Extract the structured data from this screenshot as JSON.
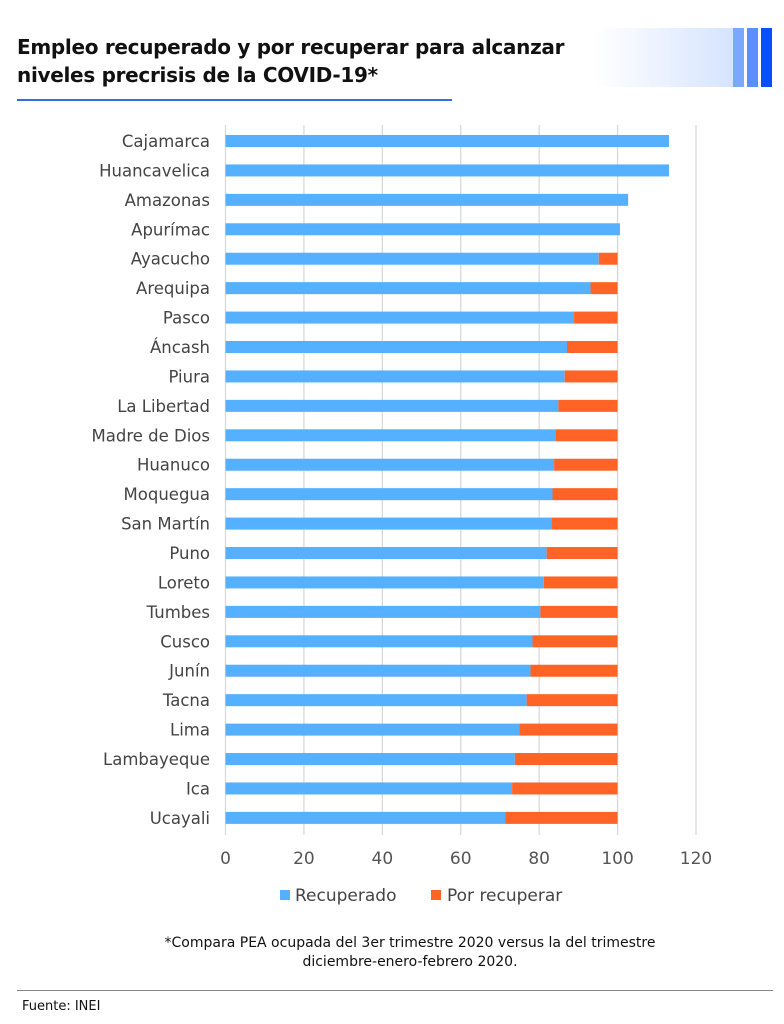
{
  "header": {
    "title_line1": "Empleo recuperado y por recuperar para alcanzar",
    "title_line2": "niveles precrisis de la COVID-19*"
  },
  "colors": {
    "recuperado": "#55b0ff",
    "por_recuperar": "#ff6426",
    "accent": "#2f6fe0",
    "stripes": [
      "#7aa8ff",
      "#5b8fff",
      "#0a4fff"
    ]
  },
  "chart_data": {
    "type": "bar",
    "orientation": "horizontal",
    "stacked": true,
    "title": "Empleo recuperado y por recuperar para alcanzar niveles precrisis de la COVID-19*",
    "categories": [
      "Cajamarca",
      "Huancavelica",
      "Amazonas",
      "Apurímac",
      "Ayacucho",
      "Arequipa",
      "Pasco",
      "Áncash",
      "Piura",
      "La Libertad",
      "Madre de Dios",
      "Huanuco",
      "Moquegua",
      "San Martín",
      "Puno",
      "Loreto",
      "Tumbes",
      "Cusco",
      "Junín",
      "Tacna",
      "Lima",
      "Lambayeque",
      "Ica",
      "Ucayali"
    ],
    "series": [
      {
        "name": "Recuperado",
        "values": [
          113.1,
          113.1,
          102.7,
          100.6,
          95.2,
          93.1,
          88.9,
          87.1,
          86.5,
          84.9,
          84.1,
          83.8,
          83.4,
          83.1,
          81.9,
          81.2,
          80.3,
          78.3,
          77.8,
          76.8,
          74.9,
          73.8,
          73.1,
          71.4
        ]
      },
      {
        "name": "Por recuperar",
        "values": [
          0,
          0,
          0,
          0,
          4.8,
          6.9,
          11.1,
          12.9,
          13.5,
          15.1,
          15.9,
          16.2,
          16.6,
          16.9,
          18.1,
          18.8,
          19.7,
          21.7,
          22.2,
          23.2,
          25.1,
          26.2,
          26.9,
          28.6
        ]
      }
    ],
    "xlim": [
      0,
      120
    ],
    "xticks": [
      "0",
      "20",
      "40",
      "60",
      "80",
      "100",
      "120"
    ],
    "grid": true,
    "legend": "bottom"
  },
  "footnote": {
    "line1": "*Compara PEA ocupada del 3er trimestre 2020 versus la del trimestre",
    "line2": "diciembre-enero-febrero 2020."
  },
  "source": "Fuente: INEI"
}
